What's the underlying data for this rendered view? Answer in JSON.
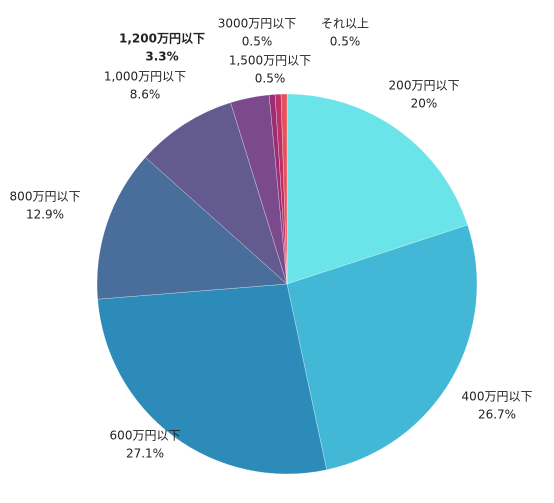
{
  "chart_data": {
    "type": "pie",
    "categories": [
      "200万円以下",
      "400万円以下",
      "600万円以下",
      "800万円以下",
      "1,000万円以下",
      "1,200万円以下",
      "1,500万円以下",
      "3000万円以下",
      "それ以上"
    ],
    "values": [
      20,
      26.7,
      27.1,
      12.9,
      8.6,
      3.3,
      0.5,
      0.5,
      0.5
    ],
    "value_labels": [
      "20%",
      "26.7%",
      "27.1%",
      "12.9%",
      "8.6%",
      "3.3%",
      "0.5%",
      "0.5%",
      "0.5%"
    ],
    "colors": [
      "#6ae4e8",
      "#43b7d6",
      "#2d8bb9",
      "#4a6e9b",
      "#635b90",
      "#7b4a8d",
      "#9b2d72",
      "#c02f68",
      "#e6505a"
    ]
  }
}
